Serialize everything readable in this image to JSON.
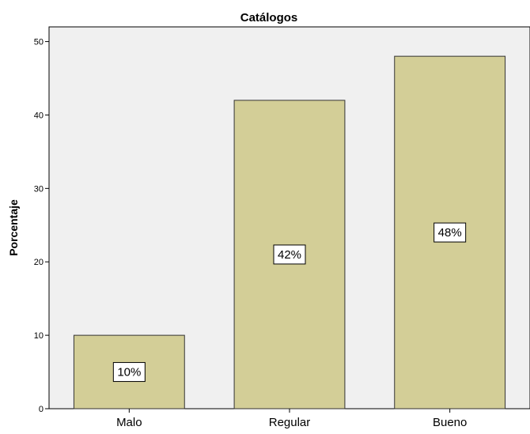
{
  "chart_data": {
    "type": "bar",
    "title": "Catálogos",
    "xlabel": "",
    "ylabel": "Porcentaje",
    "categories": [
      "Malo",
      "Regular",
      "Bueno"
    ],
    "values": [
      10,
      42,
      48
    ],
    "data_labels": [
      "10%",
      "42%",
      "48%"
    ],
    "ylim": [
      0,
      52
    ],
    "yticks": [
      0,
      10,
      20,
      30,
      40,
      50
    ],
    "grid": false,
    "legend": "none",
    "colors": {
      "bar_fill": "#d3ce97",
      "bar_stroke": "#333333",
      "plot_background": "#f0f0f0",
      "axis": "#000000",
      "label_box": "#ffffff"
    }
  }
}
